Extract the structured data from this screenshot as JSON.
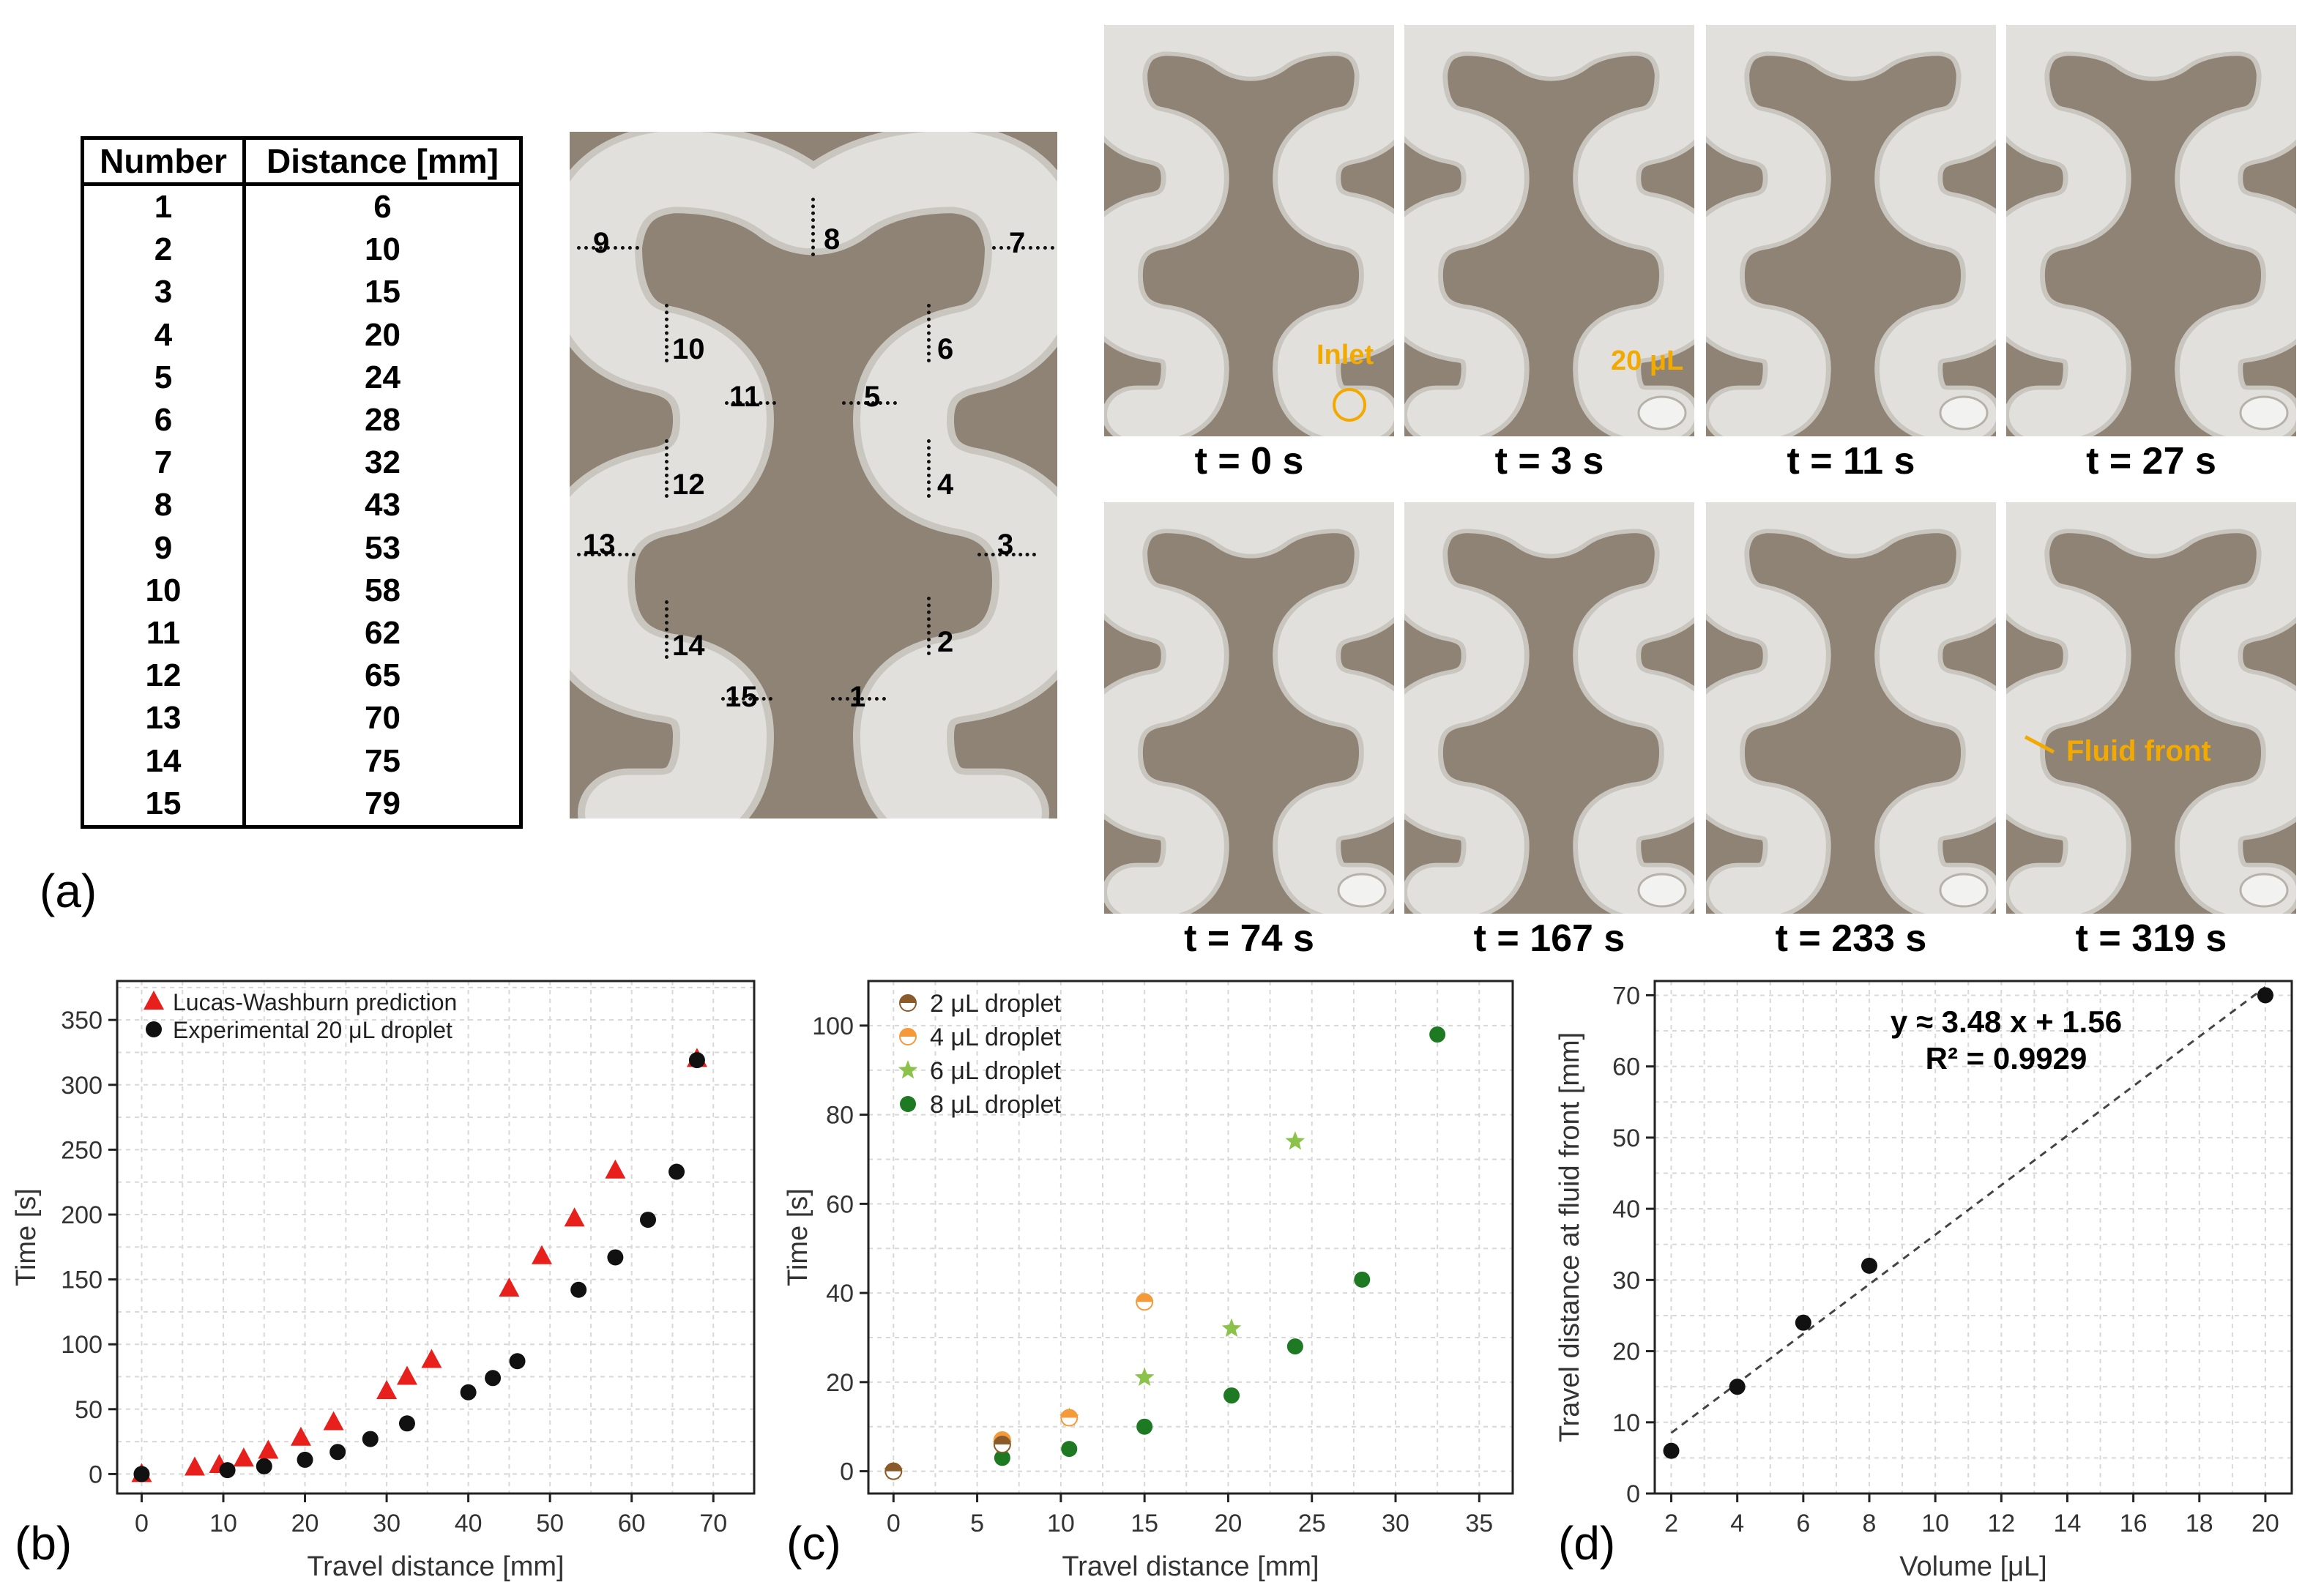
{
  "panel_a": {
    "label": "(a)",
    "table": {
      "headers": [
        "Number",
        "Distance [mm]"
      ],
      "rows": [
        [
          "1",
          "6"
        ],
        [
          "2",
          "10"
        ],
        [
          "3",
          "15"
        ],
        [
          "4",
          "20"
        ],
        [
          "5",
          "24"
        ],
        [
          "6",
          "28"
        ],
        [
          "7",
          "32"
        ],
        [
          "8",
          "43"
        ],
        [
          "9",
          "53"
        ],
        [
          "10",
          "58"
        ],
        [
          "11",
          "62"
        ],
        [
          "12",
          "65"
        ],
        [
          "13",
          "70"
        ],
        [
          "14",
          "75"
        ],
        [
          "15",
          "79"
        ]
      ]
    },
    "chip_markers": [
      "1",
      "2",
      "3",
      "4",
      "5",
      "6",
      "7",
      "8",
      "9",
      "10",
      "11",
      "12",
      "13",
      "14",
      "15"
    ],
    "snapshots": [
      {
        "caption": "t = 0 s",
        "annotation": "Inlet"
      },
      {
        "caption": "t = 3 s",
        "annotation": "20 μL"
      },
      {
        "caption": "t = 11 s",
        "annotation": ""
      },
      {
        "caption": "t = 27 s",
        "annotation": ""
      },
      {
        "caption": "t = 74 s",
        "annotation": ""
      },
      {
        "caption": "t = 167 s",
        "annotation": ""
      },
      {
        "caption": "t = 233 s",
        "annotation": ""
      },
      {
        "caption": "t = 319 s",
        "annotation": "Fluid front"
      }
    ],
    "colors": {
      "substrate": "#8e8374",
      "channel": "#dedcd8",
      "annotation": "#f2a900"
    }
  },
  "chart_data": [
    {
      "id": "b",
      "panel_label": "(b)",
      "type": "scatter",
      "xlabel": "Travel distance [mm]",
      "ylabel": "Time [s]",
      "xlim": [
        -3,
        75
      ],
      "ylim": [
        -15,
        380
      ],
      "xticks": [
        "0",
        "10",
        "20",
        "30",
        "40",
        "50",
        "60",
        "70"
      ],
      "yticks": [
        "0",
        "50",
        "100",
        "150",
        "200",
        "250",
        "300",
        "350"
      ],
      "grid": true,
      "legend_position": "top-left",
      "series": [
        {
          "name": "Lucas-Washburn prediction",
          "marker": "triangle",
          "color": "#e8201c",
          "x": [
            0,
            6.5,
            9.5,
            12.5,
            15.5,
            19.5,
            23.5,
            30,
            32.5,
            35.5,
            45,
            49,
            53,
            58,
            68
          ],
          "y": [
            0,
            5,
            7,
            12,
            18,
            28,
            40,
            64,
            75,
            88,
            143,
            168,
            197,
            234,
            320
          ]
        },
        {
          "name": "Experimental 20 μL droplet",
          "marker": "circle",
          "color": "#111111",
          "x": [
            0,
            10.5,
            15,
            20,
            24,
            28,
            32.5,
            40,
            43,
            46,
            53.5,
            58,
            62,
            65.5,
            68
          ],
          "y": [
            0,
            3,
            6,
            11,
            17,
            27,
            39,
            63,
            74,
            87,
            142,
            167,
            196,
            233,
            319
          ]
        }
      ]
    },
    {
      "id": "c",
      "panel_label": "(c)",
      "type": "scatter",
      "xlabel": "Travel distance [mm]",
      "ylabel": "Time [s]",
      "xlim": [
        -1.5,
        37
      ],
      "ylim": [
        -5,
        110
      ],
      "xticks": [
        "0",
        "5",
        "10",
        "15",
        "20",
        "25",
        "30",
        "35"
      ],
      "yticks": [
        "0",
        "20",
        "40",
        "60",
        "80",
        "100"
      ],
      "grid": true,
      "legend_position": "top-left",
      "series": [
        {
          "name": "2 μL droplet",
          "marker": "half-circle",
          "color": "#8b5a2b",
          "x": [
            0,
            6.5
          ],
          "y": [
            0,
            6
          ]
        },
        {
          "name": "4 μL droplet",
          "marker": "half-circle",
          "color": "#f59a3a",
          "x": [
            0,
            6.5,
            10.5,
            15
          ],
          "y": [
            0,
            7,
            12,
            38
          ]
        },
        {
          "name": "6 μL droplet",
          "marker": "star",
          "color": "#8bc34a",
          "x": [
            0,
            6.5,
            10.5,
            15,
            20.2,
            24
          ],
          "y": [
            0,
            6,
            12,
            21,
            32,
            74
          ]
        },
        {
          "name": "8 μL droplet",
          "marker": "circle",
          "color": "#1e7a22",
          "x": [
            0,
            6.5,
            10.5,
            15,
            20.2,
            24,
            28,
            32.5
          ],
          "y": [
            0,
            3,
            5,
            10,
            17,
            28,
            43,
            98
          ]
        }
      ]
    },
    {
      "id": "d",
      "panel_label": "(d)",
      "type": "scatter",
      "xlabel": "Volume [μL]",
      "ylabel": "Travel distance at fluid front [mm]",
      "xlim": [
        1.5,
        20.8
      ],
      "ylim": [
        0,
        72
      ],
      "xticks": [
        "2",
        "4",
        "6",
        "8",
        "10",
        "12",
        "14",
        "16",
        "18",
        "20"
      ],
      "yticks": [
        "0",
        "10",
        "20",
        "30",
        "40",
        "50",
        "60",
        "70"
      ],
      "grid": true,
      "equation": "y ≈ 3.48 x + 1.56",
      "r_squared": "R² = 0.9929",
      "series": [
        {
          "marker": "circle",
          "color": "#111111",
          "x": [
            2,
            4,
            6,
            8,
            20
          ],
          "y": [
            6,
            15,
            24,
            32,
            70
          ]
        }
      ],
      "fit": {
        "slope": 3.48,
        "intercept": 1.56,
        "style": "dashed"
      }
    }
  ]
}
